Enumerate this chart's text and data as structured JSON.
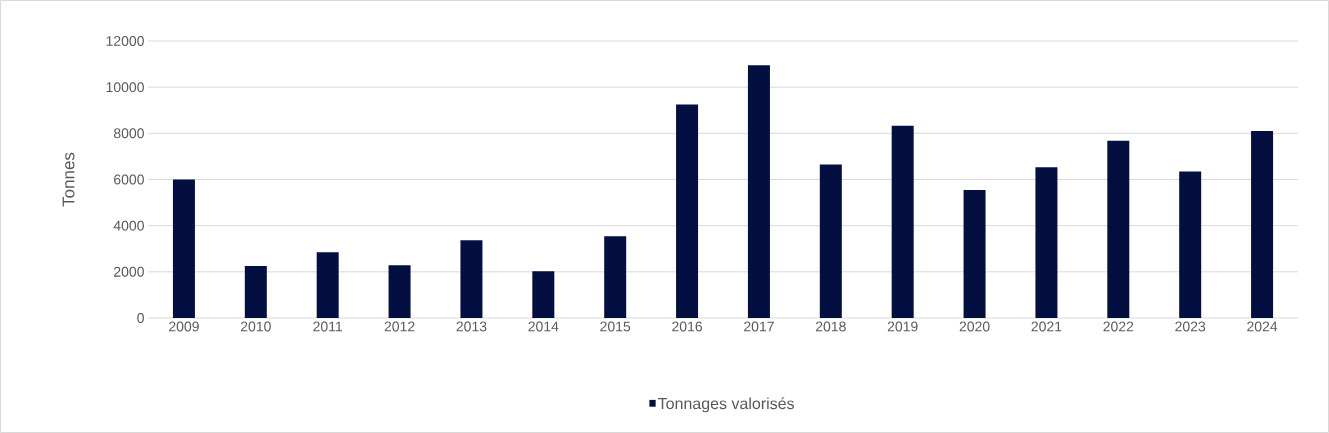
{
  "chart_data": {
    "type": "bar",
    "ylabel": "Tonnes",
    "categories": [
      "2009",
      "2010",
      "2011",
      "2012",
      "2013",
      "2014",
      "2015",
      "2016",
      "2017",
      "2018",
      "2019",
      "2020",
      "2021",
      "2022",
      "2023",
      "2024"
    ],
    "series": [
      {
        "name": "Tonnages valorisés",
        "color": "#030f41",
        "values": [
          6000,
          2250,
          2850,
          2280,
          3370,
          2030,
          3540,
          9250,
          10950,
          6650,
          8330,
          5540,
          6530,
          7680,
          6350,
          8100
        ]
      }
    ],
    "ylim": [
      0,
      12000
    ],
    "yticks": [
      0,
      2000,
      4000,
      6000,
      8000,
      10000,
      12000
    ],
    "grid": "y",
    "legend": "bottom"
  }
}
